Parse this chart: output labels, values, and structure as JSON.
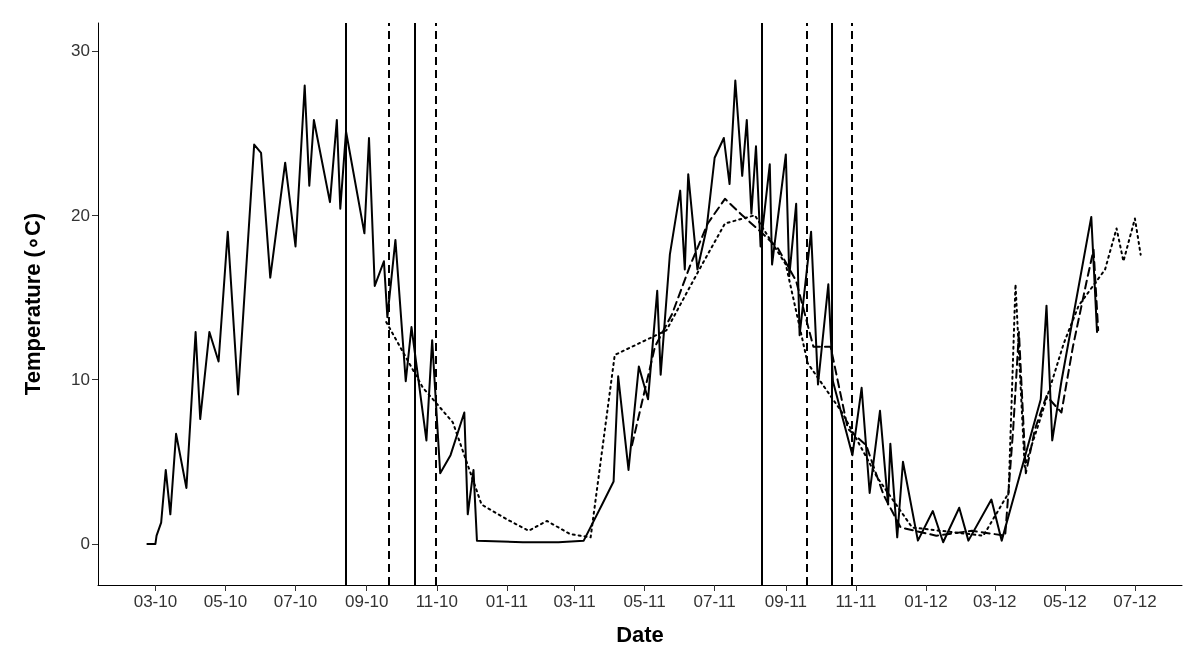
{
  "chart_data": {
    "type": "line",
    "xlabel": "Date",
    "ylabel": "Temperature (∘C)",
    "xlim": [
      "2010-01-10",
      "2012-08-11"
    ],
    "ylim": [
      -2.5,
      31.7
    ],
    "xticks": [
      {
        "value": "2010-03-01",
        "label": "03-10"
      },
      {
        "value": "2010-05-01",
        "label": "05-10"
      },
      {
        "value": "2010-07-01",
        "label": "07-10"
      },
      {
        "value": "2010-09-01",
        "label": "09-10"
      },
      {
        "value": "2010-11-01",
        "label": "11-10"
      },
      {
        "value": "2011-01-01",
        "label": "01-11"
      },
      {
        "value": "2011-03-01",
        "label": "03-11"
      },
      {
        "value": "2011-05-01",
        "label": "05-11"
      },
      {
        "value": "2011-07-01",
        "label": "07-11"
      },
      {
        "value": "2011-09-01",
        "label": "09-11"
      },
      {
        "value": "2011-11-01",
        "label": "11-11"
      },
      {
        "value": "2012-01-01",
        "label": "01-12"
      },
      {
        "value": "2012-03-01",
        "label": "03-12"
      },
      {
        "value": "2012-05-01",
        "label": "05-12"
      },
      {
        "value": "2012-07-01",
        "label": "07-12"
      }
    ],
    "yticks": [
      0,
      10,
      20,
      30
    ],
    "grid": false,
    "marker": "none",
    "series": [
      {
        "color": "#000000",
        "line_style": "solid",
        "x": [
          "2010-02-22",
          "2010-03-01",
          "2010-03-02",
          "2010-03-06",
          "2010-03-10",
          "2010-03-14",
          "2010-03-19",
          "2010-03-28",
          "2010-04-05",
          "2010-04-09",
          "2010-04-17",
          "2010-04-25",
          "2010-05-03",
          "2010-05-12",
          "2010-05-26",
          "2010-06-01",
          "2010-06-09",
          "2010-06-22",
          "2010-07-01",
          "2010-07-09",
          "2010-07-13",
          "2010-07-17",
          "2010-07-31",
          "2010-08-06",
          "2010-08-09",
          "2010-08-14",
          "2010-08-30",
          "2010-09-03",
          "2010-09-08",
          "2010-09-16",
          "2010-09-19",
          "2010-09-26",
          "2010-10-05",
          "2010-10-10",
          "2010-10-23",
          "2010-10-28",
          "2010-11-04",
          "2010-11-13",
          "2010-11-25",
          "2010-11-28",
          "2010-12-03",
          "2010-12-06",
          "2011-01-15",
          "2011-02-15",
          "2011-03-09",
          "2011-03-25",
          "2011-04-04",
          "2011-04-08",
          "2011-04-17",
          "2011-04-26",
          "2011-05-04",
          "2011-05-12",
          "2011-05-15",
          "2011-05-23",
          "2011-06-01",
          "2011-06-05",
          "2011-06-08",
          "2011-06-16",
          "2011-06-24",
          "2011-07-01",
          "2011-07-09",
          "2011-07-14",
          "2011-07-19",
          "2011-07-25",
          "2011-07-29",
          "2011-08-02",
          "2011-08-06",
          "2011-08-10",
          "2011-08-18",
          "2011-08-20",
          "2011-09-01",
          "2011-09-04",
          "2011-09-10",
          "2011-09-13",
          "2011-09-23",
          "2011-09-29",
          "2011-10-08",
          "2011-10-12",
          "2011-10-29",
          "2011-11-06",
          "2011-11-13",
          "2011-11-22",
          "2011-11-29",
          "2011-12-01",
          "2011-12-07",
          "2011-12-12",
          "2011-12-25",
          "2012-01-07",
          "2012-01-16",
          "2012-01-30",
          "2012-02-07",
          "2012-02-27",
          "2012-03-07",
          "2012-04-10",
          "2012-04-15",
          "2012-04-20",
          "2012-04-28",
          "2012-05-24",
          "2012-05-29"
        ],
        "values": [
          0,
          0,
          0.5,
          1.3,
          4.5,
          1.8,
          6.7,
          3.4,
          12.9,
          7.6,
          12.9,
          11.1,
          19.0,
          9.1,
          24.3,
          23.8,
          16.2,
          23.2,
          18.1,
          27.9,
          21.8,
          25.8,
          20.8,
          25.8,
          20.4,
          25.1,
          18.9,
          24.7,
          15.7,
          17.2,
          13.8,
          18.5,
          9.9,
          13.2,
          6.3,
          12.4,
          4.3,
          5.4,
          8.0,
          1.8,
          4.5,
          0.2,
          0.1,
          0.1,
          0.2,
          2.4,
          3.8,
          10.2,
          4.5,
          10.8,
          8.8,
          15.4,
          10.3,
          17.6,
          21.5,
          16.7,
          22.5,
          16.7,
          19.2,
          23.5,
          24.7,
          21.9,
          28.2,
          22.4,
          25.8,
          20.1,
          24.2,
          18.1,
          23.1,
          17.0,
          23.7,
          16.3,
          20.7,
          12.7,
          19.0,
          9.7,
          15.8,
          9.9,
          5.4,
          9.5,
          3.1,
          8.1,
          2.4,
          6.1,
          0.4,
          5.0,
          0.2,
          2.0,
          0.1,
          2.2,
          0.2,
          2.7,
          0.2,
          8.8,
          14.5,
          6.3,
          9.9,
          19.9,
          12.9
        ]
      },
      {
        "color": "#000000",
        "line_style": "dashed",
        "x": [
          "2011-04-20",
          "2011-05-10",
          "2011-05-25",
          "2011-06-10",
          "2011-06-25",
          "2011-07-10",
          "2011-07-25",
          "2011-08-10",
          "2011-08-25",
          "2011-09-10",
          "2011-09-25",
          "2011-10-10",
          "2011-10-25",
          "2011-11-10",
          "2011-11-25",
          "2011-12-10",
          "2012-01-10",
          "2012-02-10",
          "2012-03-10",
          "2012-03-17",
          "2012-03-22",
          "2012-03-28",
          "2012-04-05",
          "2012-04-15",
          "2012-04-28",
          "2012-05-08",
          "2012-05-20",
          "2012-05-26",
          "2012-05-30"
        ],
        "values": [
          6,
          12,
          14,
          17,
          19.5,
          21,
          20,
          19,
          18,
          16,
          12,
          12,
          7,
          6,
          3,
          1,
          0.5,
          0.8,
          0.5,
          7,
          12.9,
          4.3,
          7,
          9,
          8,
          12,
          16,
          17.9,
          13
        ]
      },
      {
        "color": "#000000",
        "line_style": "dotted",
        "x": [
          "2010-09-18",
          "2010-10-20",
          "2010-11-15",
          "2010-12-10",
          "2011-01-01",
          "2011-01-20",
          "2011-02-05",
          "2011-02-25",
          "2011-03-15",
          "2011-04-05",
          "2011-05-20",
          "2011-06-20",
          "2011-07-10",
          "2011-08-05",
          "2011-09-01",
          "2011-09-20",
          "2011-10-20",
          "2011-11-20",
          "2011-12-20",
          "2012-02-20",
          "2012-03-13",
          "2012-03-19",
          "2012-03-27",
          "2012-04-10",
          "2012-04-30",
          "2012-05-13",
          "2012-06-05",
          "2012-06-15",
          "2012-06-21",
          "2012-07-01",
          "2012-07-06"
        ],
        "values": [
          13.5,
          9.5,
          7.4,
          2.4,
          1.5,
          0.8,
          1.4,
          0.6,
          0.4,
          11.5,
          13,
          17,
          19.5,
          20,
          17,
          11,
          8,
          4,
          1,
          0.5,
          3.1,
          15.8,
          4.7,
          7.7,
          12.2,
          14.5,
          16.7,
          19.2,
          17.2,
          19.8,
          17.6
        ]
      }
    ],
    "ref_lines": [
      {
        "axis": "x",
        "value": "2010-08-14",
        "line_style": "solid",
        "color": "#000000"
      },
      {
        "axis": "x",
        "value": "2010-09-20",
        "line_style": "dashed",
        "color": "#000000"
      },
      {
        "axis": "x",
        "value": "2010-10-13",
        "line_style": "solid",
        "color": "#000000"
      },
      {
        "axis": "x",
        "value": "2010-10-31",
        "line_style": "dashed",
        "color": "#000000"
      },
      {
        "axis": "x",
        "value": "2011-08-11",
        "line_style": "solid",
        "color": "#000000"
      },
      {
        "axis": "x",
        "value": "2011-09-19",
        "line_style": "dashed",
        "color": "#000000"
      },
      {
        "axis": "x",
        "value": "2011-10-11",
        "line_style": "solid",
        "color": "#000000"
      },
      {
        "axis": "x",
        "value": "2011-10-28",
        "line_style": "dashed",
        "color": "#000000"
      }
    ]
  }
}
